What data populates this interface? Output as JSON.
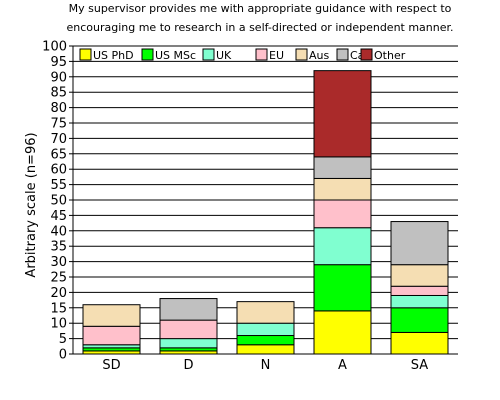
{
  "chart_data": {
    "type": "bar",
    "stacked": true,
    "title_lines": [
      "My supervisor provides me with appropriate guidance with respect to",
      "encouraging me to research in a self-directed or independent manner."
    ],
    "xlabel": "",
    "ylabel": "Arbitrary scale (n=96)",
    "ylim": [
      0,
      100
    ],
    "yticks": [
      0,
      5,
      10,
      15,
      20,
      25,
      30,
      35,
      40,
      45,
      50,
      55,
      60,
      65,
      70,
      75,
      80,
      85,
      90,
      95,
      100
    ],
    "grid": true,
    "legend_position": "top",
    "categories": [
      "SD",
      "D",
      "N",
      "A",
      "SA"
    ],
    "series": [
      {
        "name": "US PhD",
        "color": "#ffff00",
        "values": [
          1,
          1,
          3,
          14,
          7
        ]
      },
      {
        "name": "US MSc",
        "color": "#00ff00",
        "values": [
          1,
          1,
          3,
          15,
          8
        ]
      },
      {
        "name": "UK",
        "color": "#80ffd0",
        "values": [
          1,
          3,
          4,
          12,
          4
        ]
      },
      {
        "name": "EU",
        "color": "#ffc0cb",
        "values": [
          6,
          6,
          0,
          9,
          3
        ]
      },
      {
        "name": "Aus",
        "color": "#f5deb3",
        "values": [
          7,
          0,
          7,
          7,
          7
        ]
      },
      {
        "name": "Ca",
        "color": "#c0c0c0",
        "values": [
          0,
          7,
          0,
          7,
          14
        ]
      },
      {
        "name": "Other",
        "color": "#aa2a2a",
        "values": [
          0,
          0,
          0,
          28,
          0
        ]
      }
    ]
  }
}
